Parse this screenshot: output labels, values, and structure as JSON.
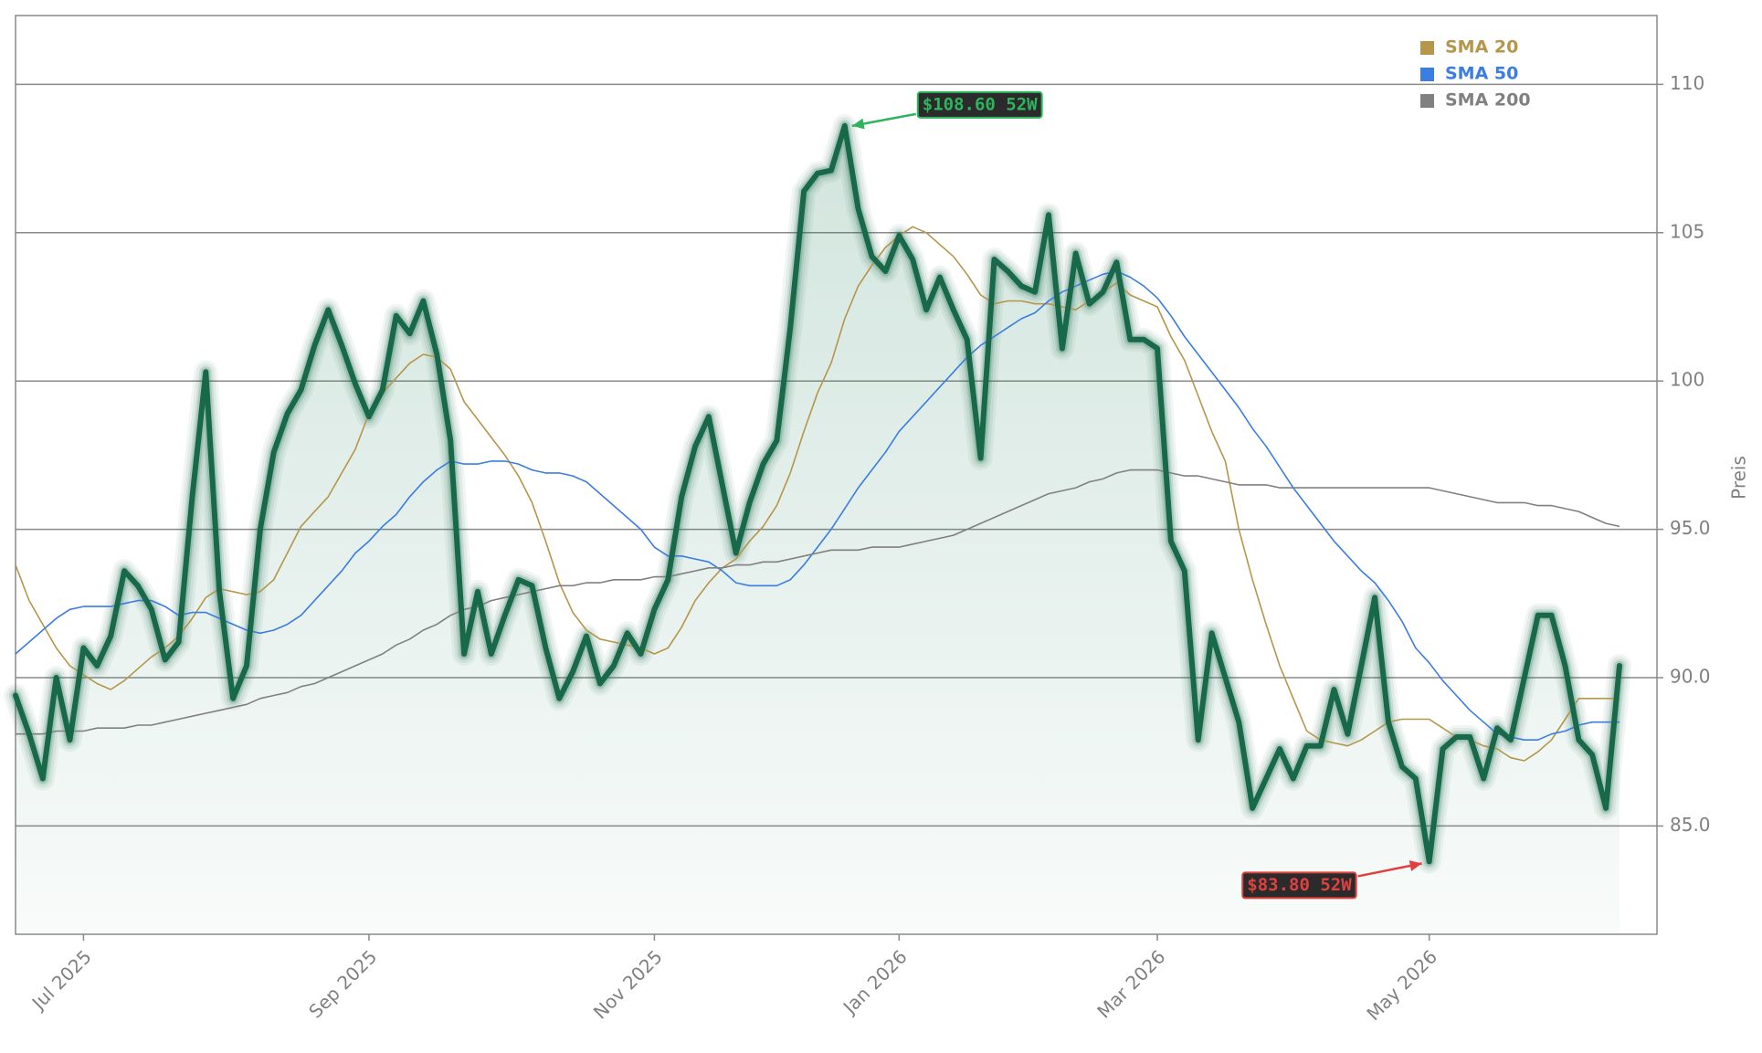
{
  "chart_data": {
    "type": "line",
    "ylabel": "Preis",
    "yaxis_side": "right",
    "grid": true,
    "legend": "upper right",
    "ylim": [
      81.35,
      112.32
    ],
    "yticks": [
      {
        "value": 85,
        "label": "85.0"
      },
      {
        "value": 90,
        "label": "90.0"
      },
      {
        "value": 95,
        "label": "95.0"
      },
      100,
      105,
      110
    ],
    "categories": [
      null,
      null,
      null,
      null,
      null,
      "Jul 2025",
      null,
      null,
      null,
      null,
      null,
      null,
      null,
      null,
      null,
      null,
      null,
      null,
      null,
      null,
      null,
      null,
      null,
      null,
      null,
      null,
      "Sep 2025",
      null,
      null,
      null,
      null,
      null,
      null,
      null,
      null,
      null,
      null,
      null,
      null,
      null,
      null,
      null,
      null,
      null,
      null,
      null,
      null,
      "Nov 2025",
      null,
      null,
      null,
      null,
      null,
      null,
      null,
      null,
      null,
      null,
      null,
      null,
      null,
      null,
      null,
      null,
      null,
      "Jan 2026",
      null,
      null,
      null,
      null,
      null,
      null,
      null,
      null,
      null,
      null,
      null,
      null,
      null,
      null,
      null,
      null,
      null,
      null,
      "Mar 2026",
      null,
      null,
      null,
      null,
      null,
      null,
      null,
      null,
      null,
      null,
      null,
      null,
      null,
      null,
      null,
      null,
      null,
      null,
      null,
      "May 2026",
      null,
      null,
      null,
      null,
      null,
      null,
      null,
      null,
      null,
      null,
      null,
      null,
      null,
      null
    ],
    "series": [
      {
        "color": "#17694a",
        "area": true,
        "values": [
          89.4,
          88.1,
          86.6,
          90.0,
          87.9,
          91.0,
          90.4,
          91.4,
          93.6,
          93.1,
          92.3,
          90.6,
          91.2,
          96.1,
          100.3,
          92.9,
          89.3,
          90.4,
          95.0,
          97.6,
          98.9,
          99.7,
          101.2,
          102.4,
          101.2,
          99.9,
          98.8,
          99.7,
          102.2,
          101.6,
          102.7,
          100.9,
          98.0,
          90.8,
          92.9,
          90.8,
          92.1,
          93.3,
          93.1,
          91.0,
          89.3,
          90.2,
          91.4,
          89.8,
          90.4,
          91.5,
          90.8,
          92.3,
          93.3,
          96.1,
          97.8,
          98.8,
          96.5,
          94.2,
          95.9,
          97.2,
          98.0,
          101.8,
          106.4,
          107.0,
          107.1,
          108.6,
          105.8,
          104.2,
          103.7,
          104.9,
          104.1,
          102.4,
          103.5,
          102.4,
          101.4,
          97.4,
          104.1,
          103.7,
          103.2,
          103.0,
          105.6,
          101.1,
          104.3,
          102.6,
          103.0,
          104.0,
          101.4,
          101.4,
          101.1,
          94.6,
          93.6,
          87.9,
          91.5,
          90.0,
          88.5,
          85.6,
          86.6,
          87.6,
          86.6,
          87.7,
          87.7,
          89.6,
          88.1,
          90.4,
          92.7,
          88.5,
          87.0,
          86.6,
          83.8,
          87.6,
          88.0,
          88.0,
          86.6,
          88.3,
          87.9,
          90.0,
          92.1,
          92.1,
          90.4,
          87.9,
          87.4,
          85.6,
          90.4
        ]
      },
      {
        "name": "SMA 20",
        "color": "#b5964a",
        "values": [
          93.8,
          92.6,
          91.8,
          91.0,
          90.4,
          90.1,
          89.8,
          89.6,
          89.9,
          90.3,
          90.7,
          91.0,
          91.4,
          92.0,
          92.7,
          93.0,
          92.9,
          92.8,
          92.9,
          93.3,
          94.2,
          95.1,
          95.6,
          96.1,
          96.9,
          97.7,
          98.9,
          99.6,
          100.1,
          100.6,
          100.9,
          100.8,
          100.4,
          99.3,
          98.7,
          98.1,
          97.5,
          96.8,
          95.9,
          94.6,
          93.2,
          92.2,
          91.6,
          91.3,
          91.2,
          91.1,
          91.0,
          90.8,
          91.0,
          91.7,
          92.6,
          93.2,
          93.7,
          94.0,
          94.6,
          95.1,
          95.8,
          96.9,
          98.3,
          99.6,
          100.6,
          102.1,
          103.2,
          103.9,
          104.5,
          104.9,
          105.2,
          105.0,
          104.6,
          104.2,
          103.6,
          102.9,
          102.6,
          102.7,
          102.7,
          102.6,
          102.6,
          102.5,
          102.4,
          102.7,
          103.0,
          103.3,
          102.9,
          102.7,
          102.5,
          101.5,
          100.7,
          99.5,
          98.3,
          97.3,
          95.0,
          93.3,
          91.8,
          90.4,
          89.3,
          88.2,
          87.9,
          87.8,
          87.7,
          87.9,
          88.2,
          88.5,
          88.6,
          88.6,
          88.6,
          88.3,
          88.0,
          87.9,
          87.7,
          87.6,
          87.3,
          87.2,
          87.5,
          87.9,
          88.6,
          89.3,
          89.3,
          89.3,
          89.3
        ]
      },
      {
        "name": "SMA 50",
        "color": "#3b7de0",
        "values": [
          90.8,
          91.2,
          91.6,
          92.0,
          92.3,
          92.4,
          92.4,
          92.4,
          92.5,
          92.6,
          92.6,
          92.4,
          92.1,
          92.2,
          92.2,
          92.0,
          91.8,
          91.6,
          91.5,
          91.6,
          91.8,
          92.1,
          92.6,
          93.1,
          93.6,
          94.2,
          94.6,
          95.1,
          95.5,
          96.1,
          96.6,
          97.0,
          97.3,
          97.2,
          97.2,
          97.3,
          97.3,
          97.2,
          97.0,
          96.9,
          96.9,
          96.8,
          96.6,
          96.2,
          95.8,
          95.4,
          95.0,
          94.4,
          94.1,
          94.1,
          94.0,
          93.9,
          93.6,
          93.2,
          93.1,
          93.1,
          93.1,
          93.3,
          93.8,
          94.4,
          95.0,
          95.7,
          96.4,
          97.0,
          97.6,
          98.3,
          98.8,
          99.3,
          99.8,
          100.3,
          100.8,
          101.2,
          101.5,
          101.8,
          102.1,
          102.3,
          102.7,
          103.0,
          103.2,
          103.4,
          103.6,
          103.7,
          103.5,
          103.2,
          102.8,
          102.2,
          101.5,
          100.9,
          100.3,
          99.7,
          99.1,
          98.4,
          97.8,
          97.1,
          96.4,
          95.8,
          95.2,
          94.6,
          94.1,
          93.6,
          93.2,
          92.6,
          91.9,
          91.0,
          90.5,
          89.9,
          89.4,
          88.9,
          88.5,
          88.1,
          88.0,
          87.9,
          87.9,
          88.1,
          88.2,
          88.4,
          88.5,
          88.5,
          88.5
        ]
      },
      {
        "name": "SMA 200",
        "color": "#808080",
        "values": [
          88.1,
          88.1,
          88.1,
          88.2,
          88.2,
          88.2,
          88.3,
          88.3,
          88.3,
          88.4,
          88.4,
          88.5,
          88.6,
          88.7,
          88.8,
          88.9,
          89.0,
          89.1,
          89.3,
          89.4,
          89.5,
          89.7,
          89.8,
          90.0,
          90.2,
          90.4,
          90.6,
          90.8,
          91.1,
          91.3,
          91.6,
          91.8,
          92.1,
          92.3,
          92.4,
          92.6,
          92.7,
          92.8,
          92.9,
          93.0,
          93.1,
          93.1,
          93.2,
          93.2,
          93.3,
          93.3,
          93.3,
          93.4,
          93.4,
          93.5,
          93.6,
          93.7,
          93.7,
          93.8,
          93.8,
          93.9,
          93.9,
          94.0,
          94.1,
          94.2,
          94.3,
          94.3,
          94.3,
          94.4,
          94.4,
          94.4,
          94.5,
          94.6,
          94.7,
          94.8,
          95.0,
          95.2,
          95.4,
          95.6,
          95.8,
          96.0,
          96.2,
          96.3,
          96.4,
          96.6,
          96.7,
          96.9,
          97.0,
          97.0,
          97.0,
          96.9,
          96.8,
          96.8,
          96.7,
          96.6,
          96.5,
          96.5,
          96.5,
          96.4,
          96.4,
          96.4,
          96.4,
          96.4,
          96.4,
          96.4,
          96.4,
          96.4,
          96.4,
          96.4,
          96.4,
          96.3,
          96.2,
          96.1,
          96.0,
          95.9,
          95.9,
          95.9,
          95.8,
          95.8,
          95.7,
          95.6,
          95.4,
          95.2,
          95.1
        ]
      }
    ],
    "annotations": [
      {
        "text": "$108.60 52W",
        "target": "max",
        "color": "#2db55d"
      },
      {
        "text": "$83.80 52W",
        "target": "min",
        "color": "#e04040"
      }
    ]
  }
}
